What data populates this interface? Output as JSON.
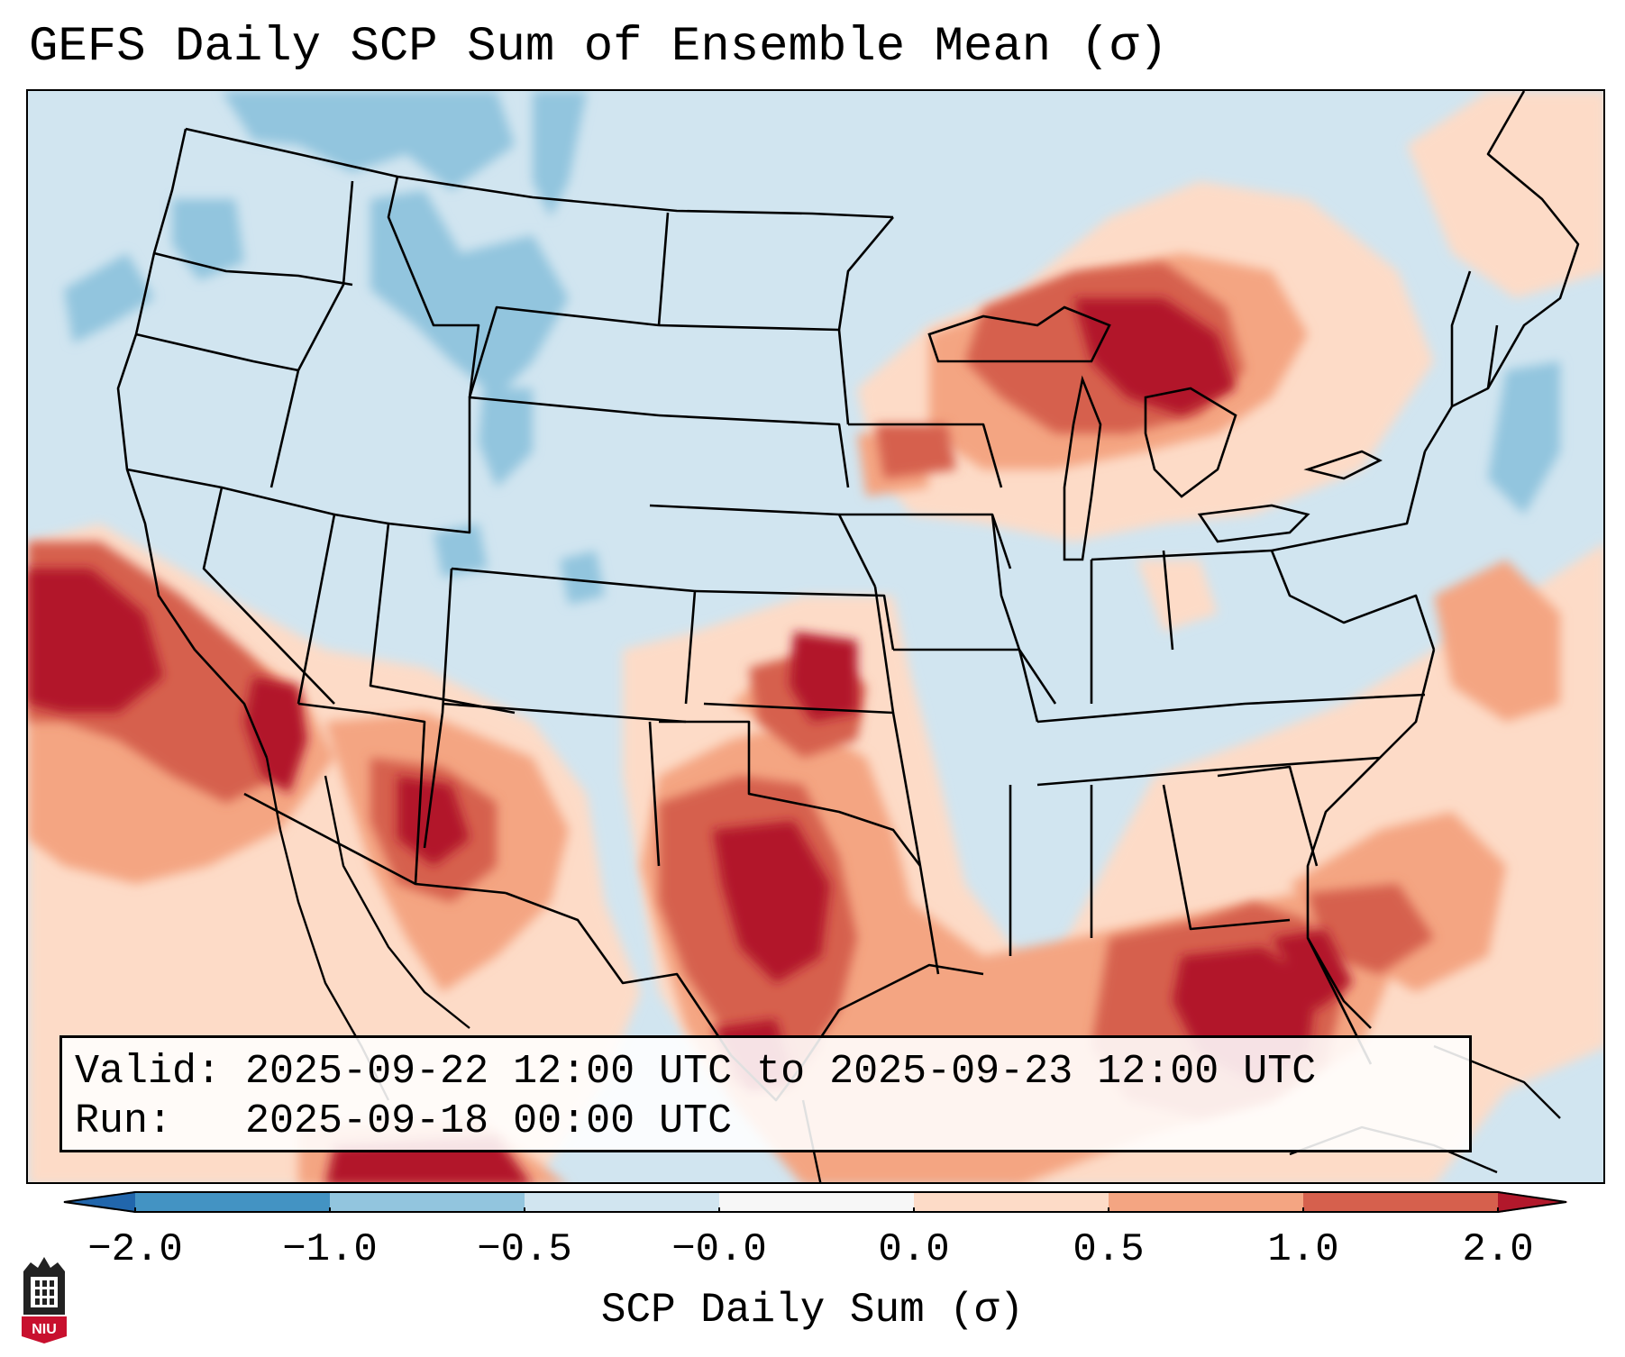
{
  "title": "GEFS Daily SCP Sum of Ensemble Mean (σ)",
  "map": {
    "region": "Contiguous United States",
    "background_color": "#d1e5f0",
    "palette": {
      "below_min": "#2166ac",
      "-2.0_to_-1.0": "#4393c3",
      "-1.0_to_-0.5": "#92c5de",
      "-0.5_to_0.0": "#d1e5f0",
      "0.0_to_0.5": "#fddbc7",
      "0.5_to_1.0": "#f4a582",
      "1.0_to_2.0": "#d6604d",
      "above_2.0": "#b2182b"
    }
  },
  "info_box": {
    "valid_label": "Valid:",
    "valid_value": "2025-09-22 12:00 UTC to 2025-09-23 12:00 UTC",
    "run_label": "Run:",
    "run_value": "2025-09-18 00:00 UTC"
  },
  "colorbar": {
    "ticks": [
      "−2.0",
      "−1.0",
      "−0.5",
      "−0.0",
      "0.0",
      "0.5",
      "1.0",
      "2.0"
    ],
    "label": "SCP Daily Sum (σ)"
  },
  "logo": {
    "text": "NIU",
    "color": "#c8102e"
  }
}
